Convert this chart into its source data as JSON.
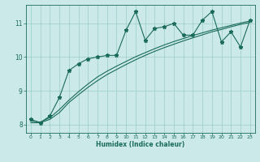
{
  "xlabel": "Humidex (Indice chaleur)",
  "bg_color": "#cce9e9",
  "grid_color": "#99cccc",
  "line_color": "#1a6b5a",
  "xlim": [
    -0.5,
    23.5
  ],
  "ylim": [
    7.75,
    11.55
  ],
  "x_ticks": [
    0,
    1,
    2,
    3,
    4,
    5,
    6,
    7,
    8,
    9,
    10,
    11,
    12,
    13,
    14,
    15,
    16,
    17,
    18,
    19,
    20,
    21,
    22,
    23
  ],
  "y_ticks": [
    8,
    9,
    10,
    11
  ],
  "line1_x": [
    0,
    1,
    2,
    3,
    4,
    5,
    6,
    7,
    8,
    9,
    10,
    11,
    12,
    13,
    14,
    15,
    16,
    17,
    18,
    19,
    20,
    21,
    22,
    23
  ],
  "line1_y": [
    8.15,
    8.05,
    8.25,
    8.8,
    9.6,
    9.8,
    9.95,
    10.0,
    10.05,
    10.05,
    10.8,
    11.35,
    10.5,
    10.85,
    10.9,
    11.0,
    10.65,
    10.65,
    11.1,
    11.35,
    10.45,
    10.75,
    10.3,
    11.1
  ],
  "line2_x": [
    0,
    1,
    2,
    3,
    4,
    5,
    6,
    7,
    8,
    9,
    10,
    11,
    12,
    13,
    14,
    15,
    16,
    17,
    18,
    19,
    20,
    21,
    22,
    23
  ],
  "line2_y": [
    8.05,
    8.05,
    8.15,
    8.35,
    8.65,
    8.88,
    9.1,
    9.3,
    9.48,
    9.63,
    9.78,
    9.92,
    10.05,
    10.17,
    10.28,
    10.38,
    10.48,
    10.57,
    10.66,
    10.75,
    10.82,
    10.9,
    10.97,
    11.03
  ],
  "line3_x": [
    0,
    1,
    2,
    3,
    4,
    5,
    6,
    7,
    8,
    9,
    10,
    11,
    12,
    13,
    14,
    15,
    16,
    17,
    18,
    19,
    20,
    21,
    22,
    23
  ],
  "line3_y": [
    8.1,
    8.07,
    8.2,
    8.44,
    8.72,
    8.97,
    9.2,
    9.41,
    9.58,
    9.73,
    9.87,
    10.01,
    10.13,
    10.25,
    10.36,
    10.46,
    10.55,
    10.64,
    10.72,
    10.8,
    10.87,
    10.94,
    11.01,
    11.07
  ]
}
